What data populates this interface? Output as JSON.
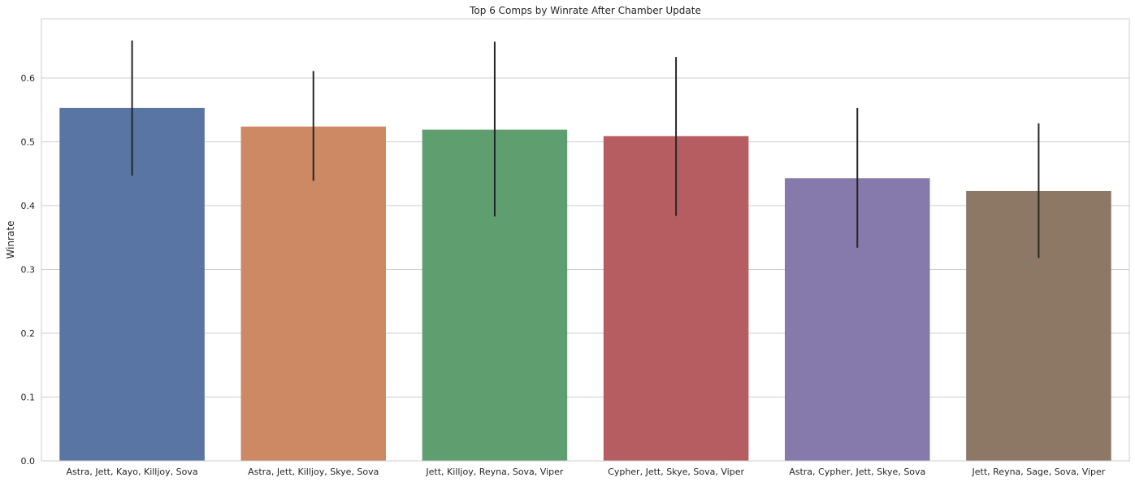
{
  "chart_data": {
    "type": "bar",
    "title": "Top 6 Comps by Winrate After Chamber Update",
    "xlabel": "",
    "ylabel": "Winrate",
    "categories": [
      "Astra, Jett, Kayo, Killjoy, Sova",
      "Astra, Jett, Killjoy, Skye, Sova",
      "Jett, Killjoy, Reyna, Sova, Viper",
      "Cypher, Jett, Skye, Sova, Viper",
      "Astra, Cypher, Jett, Skye, Sova",
      "Jett, Reyna, Sage, Sova, Viper"
    ],
    "values": [
      0.553,
      0.524,
      0.519,
      0.509,
      0.443,
      0.423
    ],
    "error_low": [
      0.447,
      0.439,
      0.383,
      0.384,
      0.334,
      0.318
    ],
    "error_high": [
      0.659,
      0.611,
      0.657,
      0.633,
      0.553,
      0.529
    ],
    "colors": [
      "#5875a4",
      "#cc8963",
      "#5f9e6e",
      "#b55d60",
      "#857aab",
      "#8d7866"
    ],
    "ylim": [
      0,
      0.693
    ],
    "yticks": [
      "0.0",
      "0.1",
      "0.2",
      "0.3",
      "0.4",
      "0.5",
      "0.6"
    ],
    "grid": true,
    "error_color": "#262626"
  }
}
